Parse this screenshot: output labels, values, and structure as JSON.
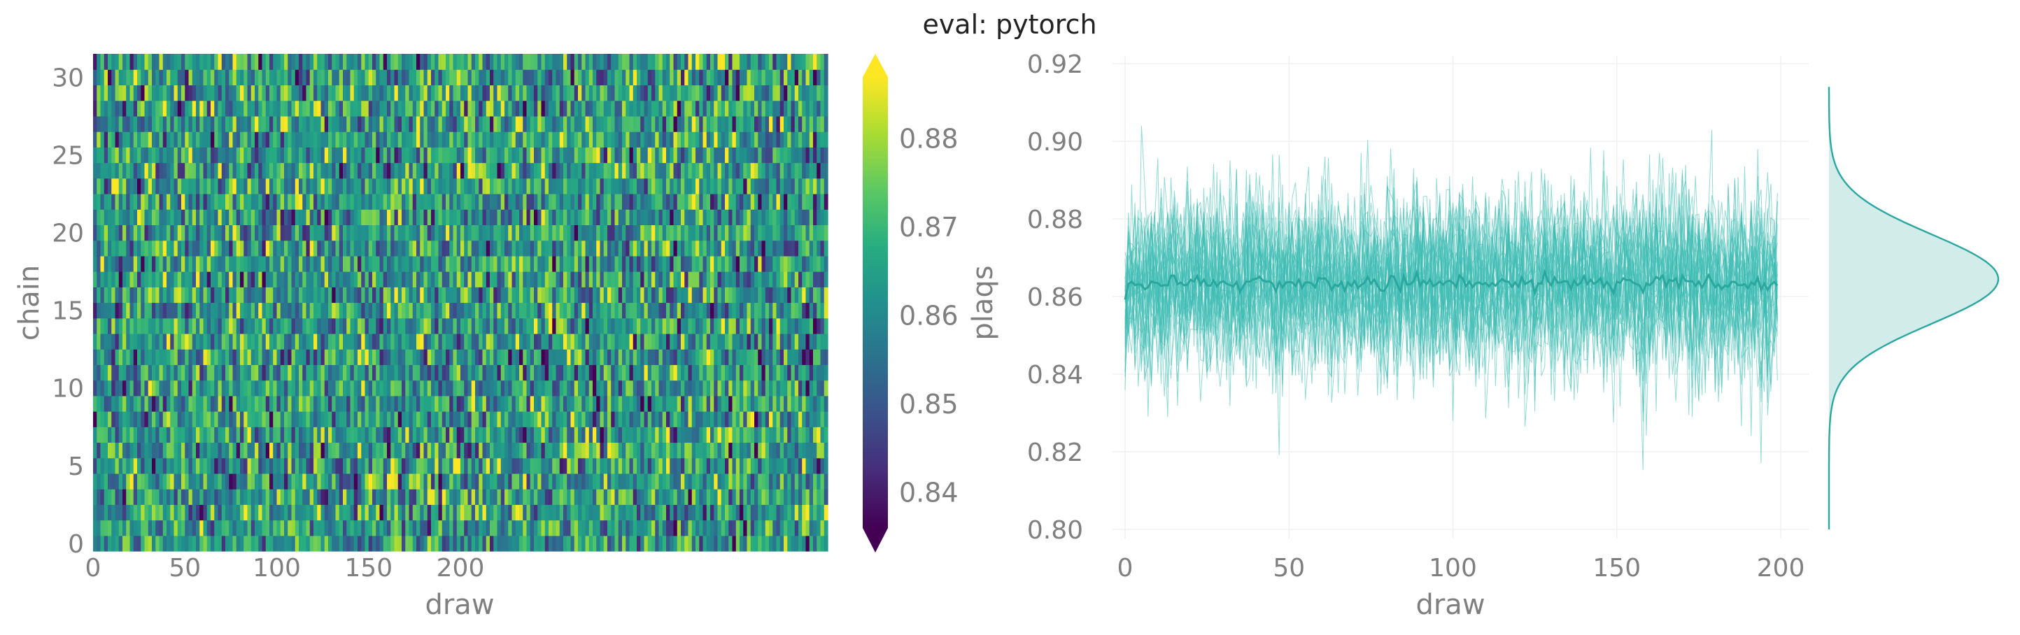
{
  "title": "eval: pytorch",
  "colors": {
    "text": "#7f7f7f",
    "title": "#222222",
    "trace": "#3cbcb2",
    "trace_mean": "#2aa89f",
    "kde_fill": "#d2ecea",
    "grid": "#f0f0f0",
    "colormap": "viridis"
  },
  "chart_data": [
    {
      "type": "heatmap",
      "title": "",
      "xlabel": "draw",
      "ylabel": "chain",
      "x_ticks": [
        "0",
        "50",
        "100",
        "150",
        "200"
      ],
      "y_ticks": [
        "0",
        "5",
        "10",
        "15",
        "20",
        "25",
        "30"
      ],
      "n_chains": 32,
      "n_draws": 200,
      "colorbar": {
        "label": "plaqs",
        "ticks": [
          "0.84",
          "0.85",
          "0.86",
          "0.87",
          "0.88"
        ],
        "range": [
          0.836,
          0.887
        ],
        "extend": "both"
      },
      "value_mean": 0.8635,
      "value_std": 0.0115
    },
    {
      "type": "line",
      "title": "",
      "xlabel": "draw",
      "ylabel": "plaqs",
      "x_ticks": [
        "0",
        "50",
        "100",
        "150",
        "200"
      ],
      "y_ticks": [
        "0.80",
        "0.82",
        "0.84",
        "0.86",
        "0.88",
        "0.90",
        "0.92"
      ],
      "xlim": [
        -5,
        210
      ],
      "ylim": [
        0.8,
        0.92
      ],
      "grid": true,
      "n_series": 32,
      "n_draws": 200,
      "series_mean": 0.8635,
      "series_std": 0.0115,
      "observed_min": 0.812,
      "observed_max": 0.904,
      "start_value": 0.855
    },
    {
      "type": "area",
      "title": "",
      "description": "marginal density of plaqs (KDE), horizontal",
      "orientation": "horizontal",
      "peak_at": 0.8645,
      "ylim": [
        0.8,
        0.92
      ],
      "support": [
        0.8,
        0.914
      ]
    }
  ]
}
